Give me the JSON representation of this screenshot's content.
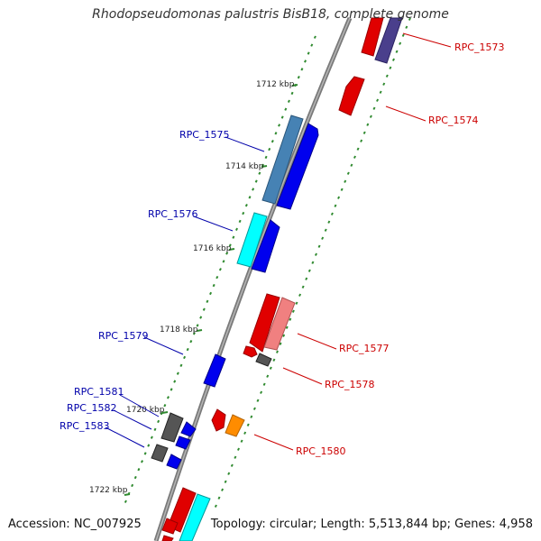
{
  "title": "Rhodopseudomonas palustris BisB18, complete genome",
  "accession": "Accession: NC_007925",
  "topology": "Topology: circular; Length: 5,513,844 bp; Genes: 4,958",
  "colors": {
    "backbone": "#8c8c8c",
    "tick": "#2f8a2f",
    "label_left": "#0000aa",
    "label_right": "#cc0000"
  },
  "kbp_labels": [
    "1712 kbp",
    "1714 kbp",
    "1716 kbp",
    "1718 kbp",
    "1720 kbp",
    "1722 kbp"
  ],
  "genes_left": [
    {
      "label": "RPC_1575"
    },
    {
      "label": "RPC_1576"
    },
    {
      "label": "RPC_1579"
    },
    {
      "label": "RPC_1581"
    },
    {
      "label": "RPC_1582"
    },
    {
      "label": "RPC_1583"
    }
  ],
  "genes_right": [
    {
      "label": "RPC_1573"
    },
    {
      "label": "RPC_1574"
    },
    {
      "label": "RPC_1577"
    },
    {
      "label": "RPC_1578"
    },
    {
      "label": "RPC_1580"
    }
  ]
}
